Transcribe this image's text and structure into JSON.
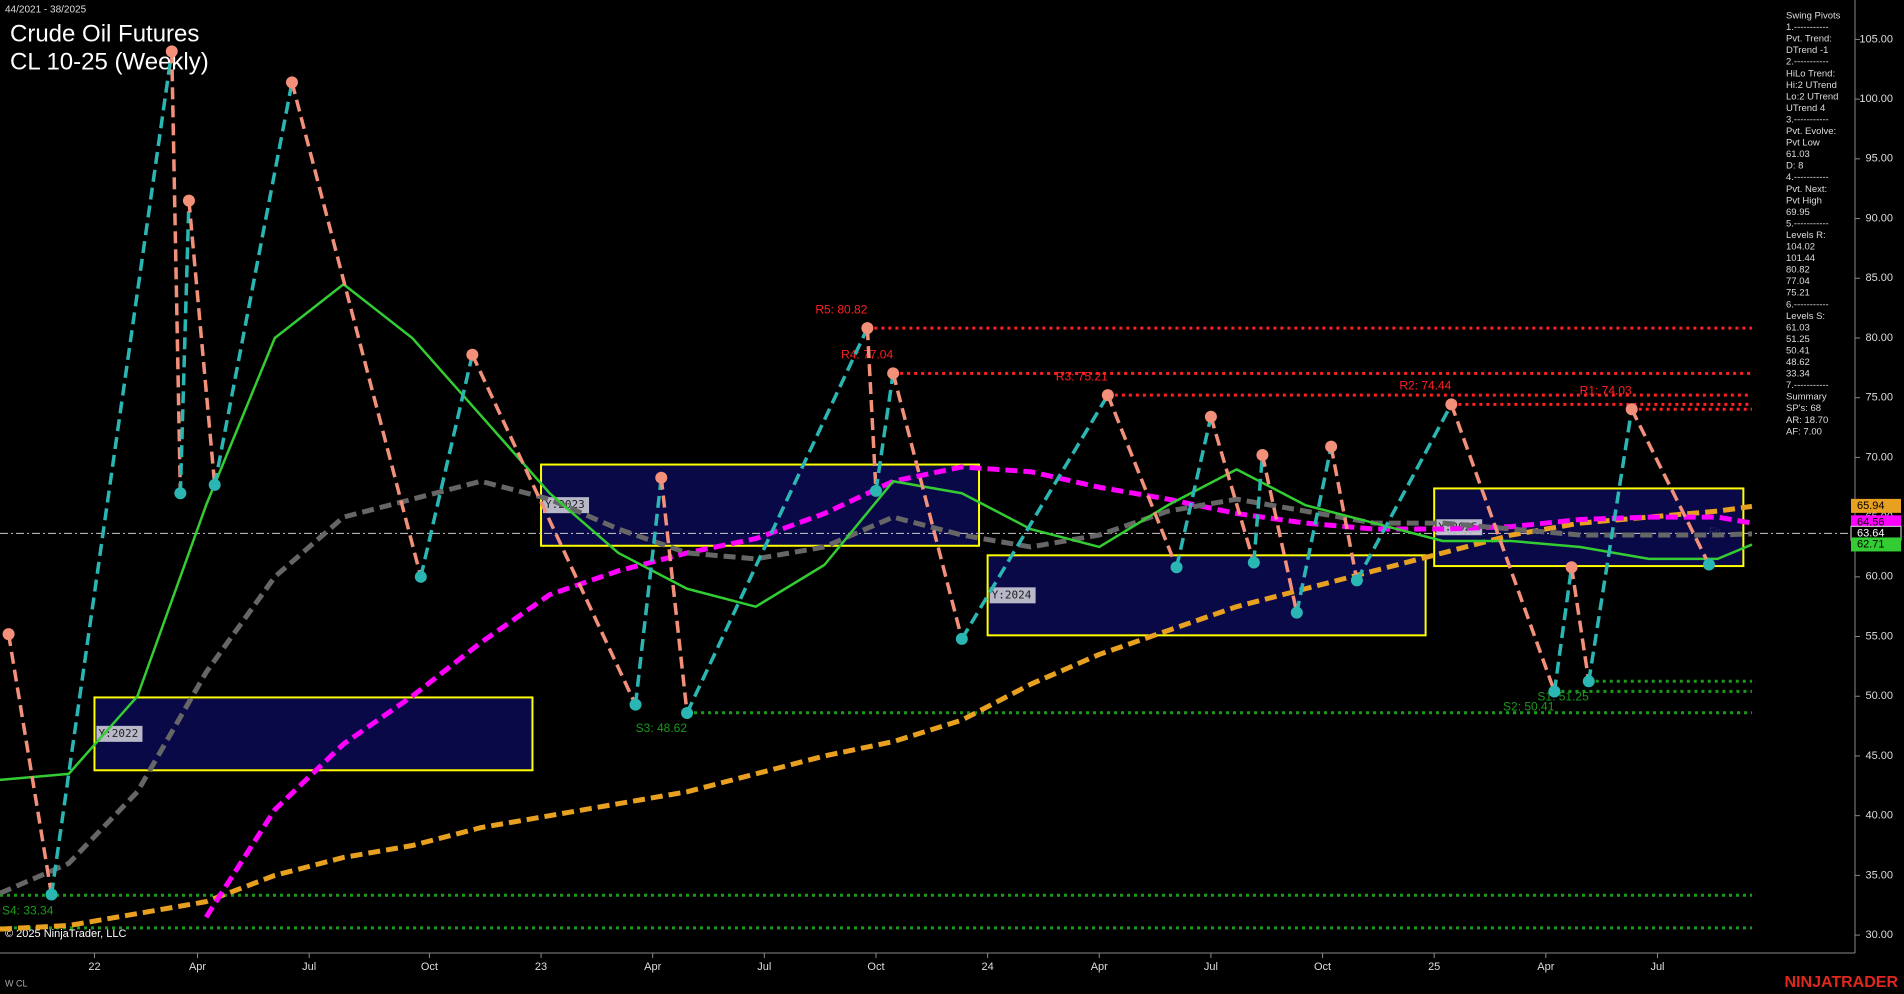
{
  "chart_data": {
    "type": "line",
    "period": "44/2021 - 38/2025",
    "title": "Crude Oil Futures",
    "subtitle": "CL 10-25 (Weekly)",
    "copyright": "© 2025 NinjaTrader, LLC",
    "instrument_tag": "W CL",
    "brand": "NINJATRADER",
    "xlim": [
      0,
      216
    ],
    "xticks": [
      {
        "value": 11,
        "label": "22"
      },
      {
        "value": 23,
        "label": "Apr"
      },
      {
        "value": 36,
        "label": "Jul"
      },
      {
        "value": 50,
        "label": "Oct"
      },
      {
        "value": 63,
        "label": "23"
      },
      {
        "value": 76,
        "label": "Apr"
      },
      {
        "value": 89,
        "label": "Jul"
      },
      {
        "value": 102,
        "label": "Oct"
      },
      {
        "value": 115,
        "label": "24"
      },
      {
        "value": 128,
        "label": "Apr"
      },
      {
        "value": 141,
        "label": "Jul"
      },
      {
        "value": 154,
        "label": "Oct"
      },
      {
        "value": 167,
        "label": "25"
      },
      {
        "value": 180,
        "label": "Apr"
      },
      {
        "value": 193,
        "label": "Jul"
      }
    ],
    "ylim": [
      28.5,
      108.3
    ],
    "yticks": [
      {
        "value": 30,
        "label": "30.00"
      },
      {
        "value": 35,
        "label": "35.00"
      },
      {
        "value": 40,
        "label": "40.00"
      },
      {
        "value": 45,
        "label": "45.00"
      },
      {
        "value": 50,
        "label": "50.00"
      },
      {
        "value": 55,
        "label": "55.00"
      },
      {
        "value": 60,
        "label": "60.00"
      },
      {
        "value": 65,
        "label": "65.00"
      },
      {
        "value": 70,
        "label": "70.00"
      },
      {
        "value": 75,
        "label": "75.00"
      },
      {
        "value": 80,
        "label": "80.00"
      },
      {
        "value": 85,
        "label": "85.00"
      },
      {
        "value": 90,
        "label": "90.00"
      },
      {
        "value": 95,
        "label": "95.00"
      },
      {
        "value": 100,
        "label": "100.00"
      },
      {
        "value": 105,
        "label": "105.00"
      }
    ],
    "x": [
      0,
      8,
      16,
      24,
      32,
      40,
      48,
      56,
      64,
      72,
      80,
      88,
      96,
      104,
      112,
      120,
      128,
      136,
      144,
      152,
      160,
      168,
      176,
      184,
      192,
      200,
      204
    ],
    "series": [
      {
        "color": "#e8a020",
        "style": "dashed",
        "values": [
          30.5,
          30.8,
          31.8,
          32.8,
          35,
          36.5,
          37.5,
          39,
          40,
          41,
          42,
          43.5,
          45,
          46.2,
          48,
          51,
          53.5,
          55.5,
          57.5,
          59,
          60.5,
          62,
          63.5,
          64.5,
          65,
          65.5,
          65.9
        ]
      },
      {
        "color": "#ff00ff",
        "style": "dashed",
        "values": [
          null,
          null,
          null,
          31.5,
          40.5,
          46,
          50,
          54.5,
          58.5,
          60.5,
          62,
          63.2,
          65.3,
          68,
          69.2,
          68.8,
          67.5,
          66.5,
          65.3,
          64.5,
          64,
          64,
          64.2,
          64.8,
          65,
          65,
          64.5
        ]
      },
      {
        "color": "#666666",
        "style": "dashed",
        "values": [
          33.5,
          36,
          42,
          52,
          60,
          65,
          66.5,
          68,
          66.5,
          64,
          62,
          61.5,
          62.5,
          65,
          63.5,
          62.5,
          63.5,
          65.5,
          66.5,
          65.5,
          64.5,
          64.5,
          64,
          63.5,
          63.5,
          63.5,
          63.6
        ]
      },
      {
        "color": "#33cc33",
        "style": "solid",
        "values": [
          43,
          43.5,
          50,
          66,
          80,
          84.5,
          80,
          73.5,
          67,
          62,
          59,
          57.5,
          61,
          68,
          67,
          64,
          62.5,
          66,
          69,
          66,
          64.5,
          63,
          63,
          62.5,
          61.5,
          61.5,
          62.7
        ]
      }
    ],
    "pivots": {
      "up_color": "#2ab7b4",
      "down_color": "#f2907a",
      "x": [
        1,
        6,
        20,
        21,
        22,
        25,
        34,
        49,
        55,
        74,
        77,
        80,
        101,
        102,
        104,
        112,
        129,
        137,
        141,
        146,
        147,
        151,
        155,
        158,
        169,
        181,
        183,
        185,
        190,
        199
      ],
      "values": [
        55.2,
        33.4,
        104,
        67,
        91.5,
        67.7,
        101.4,
        60,
        78.6,
        49.3,
        68.3,
        48.6,
        80.82,
        67.2,
        77.04,
        54.8,
        75.21,
        60.8,
        73.4,
        61.2,
        70.2,
        57,
        70.9,
        59.7,
        74.44,
        50.4,
        60.8,
        51.25,
        74.03,
        61.03
      ]
    },
    "levels": [
      {
        "label": "R5: 80.82",
        "value": 80.82,
        "x": [
          101,
          204
        ],
        "color": "#ff2020"
      },
      {
        "label": "R4: 77.04",
        "value": 77.04,
        "x": [
          104,
          204
        ],
        "color": "#ff2020"
      },
      {
        "label": "R3: 75.21",
        "value": 75.21,
        "x": [
          129,
          204
        ],
        "color": "#ff2020"
      },
      {
        "label": "R2: 74.44",
        "value": 74.44,
        "x": [
          169,
          204
        ],
        "color": "#ff2020"
      },
      {
        "label": "R1: 74.03",
        "value": 74.03,
        "x": [
          190,
          204
        ],
        "color": "#ff2020"
      },
      {
        "label": "S1: 51.25",
        "value": 51.25,
        "x": [
          185,
          204
        ],
        "color": "#1a9a1a"
      },
      {
        "label": "S2: 50.41",
        "value": 50.41,
        "x": [
          181,
          204
        ],
        "color": "#1a9a1a"
      },
      {
        "label": "S3: 48.62",
        "value": 48.62,
        "x": [
          80,
          204
        ],
        "color": "#1a9a1a"
      },
      {
        "label": "S4: 33.34",
        "value": 33.34,
        "x": [
          0,
          204
        ],
        "color": "#1a9a1a"
      },
      {
        "value": 30.6,
        "x": [
          0,
          204
        ],
        "color": "#1a9a1a"
      }
    ],
    "year_boxes": [
      {
        "label": "Y:2022",
        "x": [
          11,
          62
        ],
        "y": [
          43.8,
          49.9
        ]
      },
      {
        "label": "Y:2023",
        "x": [
          63,
          114
        ],
        "y": [
          62.6,
          69.4
        ]
      },
      {
        "label": "Y:2024",
        "x": [
          115,
          166
        ],
        "y": [
          55.1,
          61.8
        ]
      },
      {
        "label": "Y:2025",
        "x": [
          167,
          203
        ],
        "y": [
          60.9,
          67.4
        ]
      }
    ],
    "current_price": 63.64,
    "annotation": "Fp",
    "price_tags": [
      {
        "value": 65.94,
        "color": "#e8a020"
      },
      {
        "value": 64.56,
        "color": "#ff00ff"
      },
      {
        "value": 63.64,
        "color": "#000000"
      },
      {
        "value": 62.71,
        "color": "#33cc33"
      }
    ],
    "panel_lines": [
      "Swing Pivots",
      "1.-----------",
      "Pvt. Trend:",
      "DTrend -1",
      "2.-----------",
      "HiLo Trend:",
      "Hi:2 UTrend",
      "Lo:2 UTrend",
      "UTrend 4",
      "3.-----------",
      "Pvt. Evolve:",
      "Pvt Low",
      "61.03",
      "D: 8",
      "4.-----------",
      "Pvt. Next:",
      "Pvt High",
      "69.95",
      "5.-----------",
      "Levels R:",
      "104.02",
      "101.44",
      "80.82",
      "77.04",
      "75.21",
      "6.-----------",
      "Levels S:",
      "61.03",
      "51.25",
      "50.41",
      "48.62",
      "33.34",
      "7.-----------",
      "Summary",
      "SP's: 68",
      "AR: 18.70",
      "AF: 7.00"
    ]
  }
}
